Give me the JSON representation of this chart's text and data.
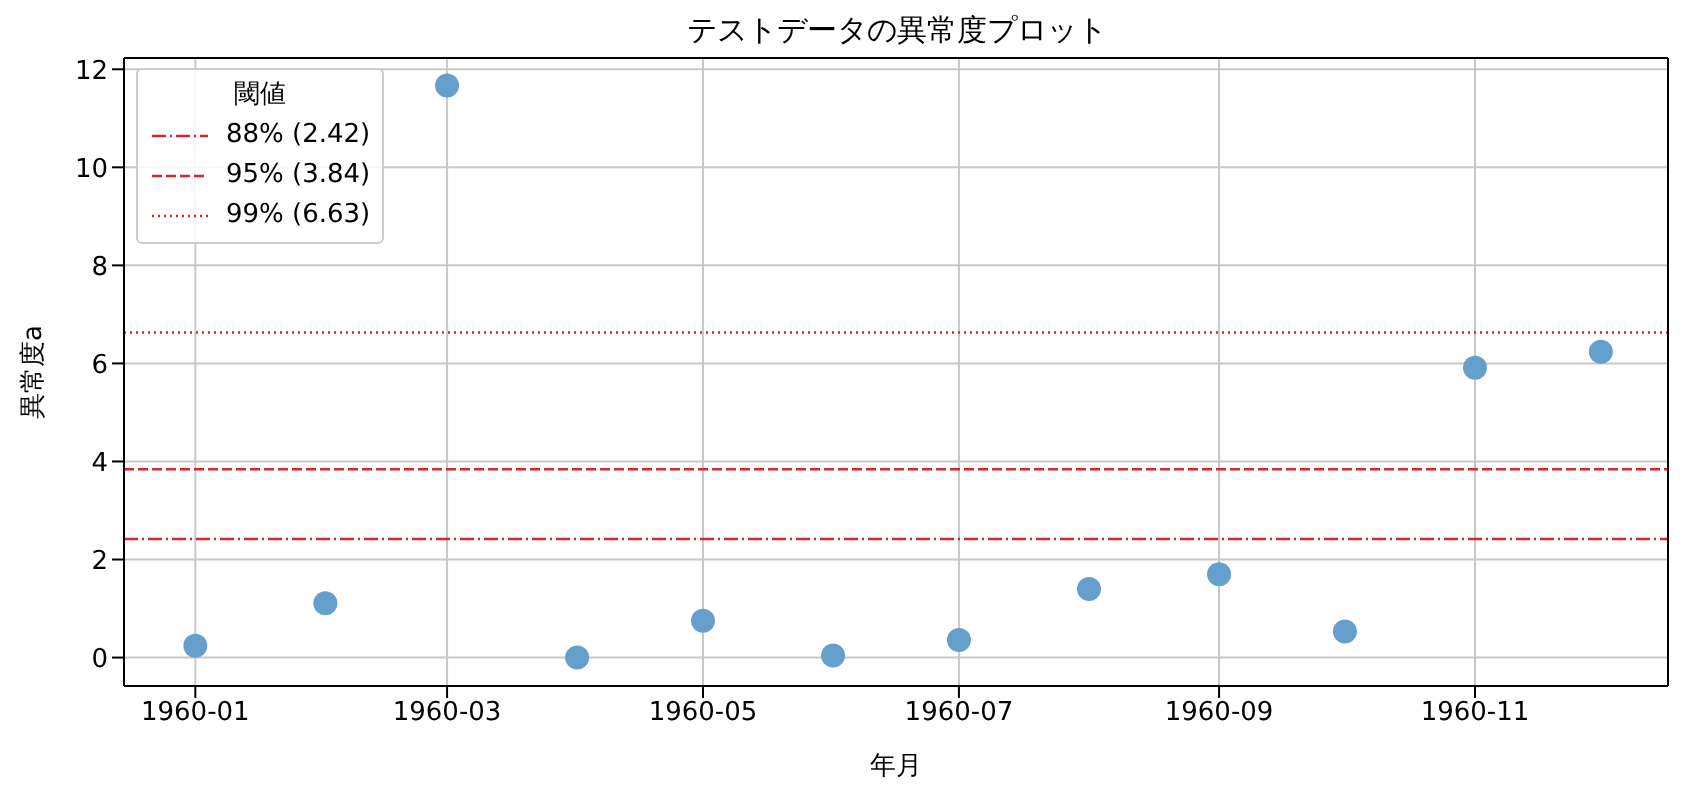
{
  "chart_data": {
    "type": "scatter",
    "title": "テストデータの異常度プロット",
    "xlabel": "年月",
    "ylabel": "異常度a",
    "x": [
      "1960-01",
      "1960-02",
      "1960-03",
      "1960-04",
      "1960-05",
      "1960-06",
      "1960-07",
      "1960-08",
      "1960-09",
      "1960-10",
      "1960-11",
      "1960-12"
    ],
    "series": [
      {
        "color": "#659fcb",
        "values": [
          0.24,
          1.11,
          11.67,
          0,
          0.75,
          0.04,
          0.36,
          1.4,
          1.7,
          0.53,
          5.91,
          6.24
        ]
      }
    ],
    "xlim": [
      "1959-12-15",
      "1960-12-17"
    ],
    "xticks": [
      "1960-01",
      "1960-03",
      "1960-05",
      "1960-07",
      "1960-09",
      "1960-11"
    ],
    "ylim": [
      -0.58,
      12.23
    ],
    "yticks": [
      0,
      2,
      4,
      6,
      8,
      10,
      12
    ],
    "ref_lines": [
      {
        "axis": "y",
        "value": 2.42,
        "label": "88% (2.42)",
        "color": "#d62728",
        "line_style": "dashdot"
      },
      {
        "axis": "y",
        "value": 3.84,
        "label": "95% (3.84)",
        "color": "#d62728",
        "line_style": "dashed"
      },
      {
        "axis": "y",
        "value": 6.63,
        "label": "99% (6.63)",
        "color": "#d62728",
        "line_style": "dotted"
      }
    ],
    "legend_title": "閾値",
    "legend": "top left",
    "grid": true,
    "marker": "circle"
  }
}
